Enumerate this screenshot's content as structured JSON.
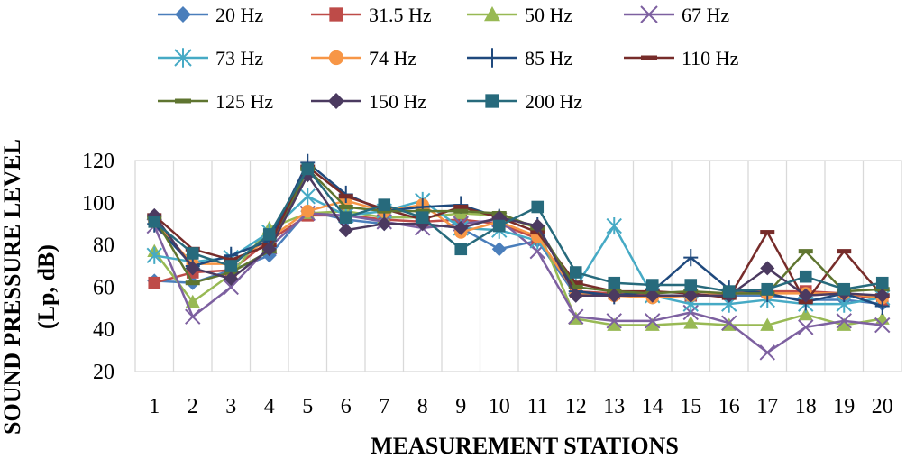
{
  "chart_data": {
    "type": "line",
    "title": "",
    "xlabel": "MEASUREMENT STATIONS",
    "ylabel_line1": "SOUND PRESSURE LEVEL",
    "ylabel_line2": "(Lp, dB)",
    "ylim": [
      20,
      120
    ],
    "yticks": [
      20,
      40,
      60,
      80,
      100,
      120
    ],
    "categories": [
      "1",
      "2",
      "3",
      "4",
      "5",
      "6",
      "7",
      "8",
      "9",
      "10",
      "11",
      "12",
      "13",
      "14",
      "15",
      "16",
      "17",
      "18",
      "19",
      "20"
    ],
    "grid": "vertical",
    "legend_position": "top",
    "series": [
      {
        "name": "20 Hz",
        "color": "#4a7ebb",
        "marker": "diamond",
        "values": [
          63,
          62,
          68,
          75,
          96,
          92,
          90,
          90,
          88,
          78,
          82,
          56,
          56,
          56,
          56,
          56,
          56,
          54,
          54,
          52
        ]
      },
      {
        "name": "31.5 Hz",
        "color": "#be4b48",
        "marker": "square",
        "values": [
          62,
          67,
          68,
          82,
          94,
          94,
          92,
          91,
          92,
          90,
          83,
          58,
          57,
          56,
          56,
          57,
          58,
          58,
          57,
          54
        ]
      },
      {
        "name": "50 Hz",
        "color": "#98b954",
        "marker": "triangle",
        "values": [
          77,
          53,
          66,
          88,
          95,
          96,
          93,
          93,
          95,
          94,
          88,
          45,
          42,
          42,
          43,
          42,
          42,
          47,
          42,
          45
        ]
      },
      {
        "name": "67 Hz",
        "color": "#7d60a0",
        "marker": "x",
        "values": [
          89,
          46,
          60,
          79,
          95,
          94,
          91,
          88,
          90,
          92,
          77,
          46,
          44,
          44,
          48,
          43,
          29,
          41,
          44,
          42
        ]
      },
      {
        "name": "73 Hz",
        "color": "#46aac5",
        "marker": "asterisk",
        "values": [
          75,
          72,
          74,
          86,
          103,
          94,
          96,
          101,
          88,
          87,
          82,
          60,
          89,
          56,
          52,
          52,
          54,
          52,
          52,
          55
        ]
      },
      {
        "name": "74 Hz",
        "color": "#f79646",
        "marker": "circle",
        "values": [
          91,
          71,
          71,
          83,
          96,
          101,
          96,
          99,
          86,
          91,
          84,
          57,
          56,
          55,
          56,
          57,
          57,
          57,
          57,
          55
        ]
      },
      {
        "name": "85 Hz",
        "color": "#1f497d",
        "marker": "plus",
        "values": [
          90,
          70,
          75,
          82,
          119,
          104,
          96,
          98,
          99,
          93,
          89,
          58,
          56,
          58,
          74,
          59,
          57,
          53,
          57,
          51
        ]
      },
      {
        "name": "110 Hz",
        "color": "#772c2a",
        "marker": "dash",
        "values": [
          94,
          78,
          73,
          80,
          117,
          103,
          97,
          92,
          98,
          93,
          86,
          62,
          58,
          58,
          57,
          55,
          86,
          53,
          77,
          56
        ]
      },
      {
        "name": "125 Hz",
        "color": "#5f7530",
        "marker": "dash",
        "values": [
          93,
          62,
          67,
          77,
          116,
          98,
          96,
          96,
          96,
          95,
          88,
          60,
          58,
          57,
          58,
          57,
          57,
          77,
          58,
          59
        ]
      },
      {
        "name": "150 Hz",
        "color": "#4b3a60",
        "marker": "diamond",
        "values": [
          94,
          69,
          64,
          78,
          113,
          87,
          90,
          90,
          88,
          93,
          89,
          56,
          56,
          56,
          56,
          56,
          69,
          56,
          57,
          56
        ]
      },
      {
        "name": "200 Hz",
        "color": "#276a7c",
        "marker": "square",
        "values": [
          91,
          76,
          70,
          85,
          116,
          93,
          99,
          93,
          78,
          89,
          98,
          67,
          62,
          61,
          61,
          58,
          59,
          65,
          59,
          62
        ]
      }
    ]
  }
}
